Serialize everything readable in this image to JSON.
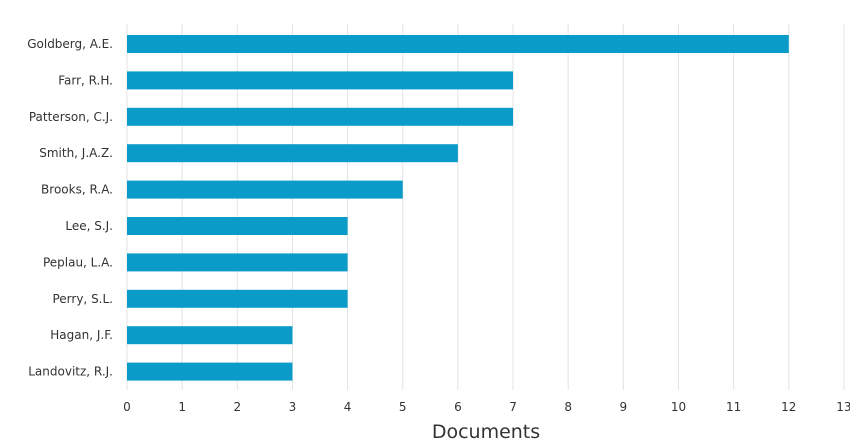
{
  "chart_data": {
    "type": "bar",
    "orientation": "horizontal",
    "categories": [
      "Goldberg, A.E.",
      "Farr, R.H.",
      "Patterson, C.J.",
      "Smith, J.A.Z.",
      "Brooks, R.A.",
      "Lee, S.J.",
      "Peplau, L.A.",
      "Perry, S.L.",
      "Hagan, J.F.",
      "Landovitz, R.J."
    ],
    "values": [
      12,
      7,
      7,
      6,
      5,
      4,
      4,
      4,
      3,
      3
    ],
    "title": "",
    "xlabel": "Documents",
    "ylabel": "",
    "xlim": [
      0,
      13
    ],
    "xticks": [
      "0",
      "1",
      "2",
      "3",
      "4",
      "5",
      "6",
      "7",
      "8",
      "9",
      "10",
      "11",
      "12",
      "13"
    ],
    "grid": "vertical",
    "legend": "none",
    "bar_color": "#0a9bc9"
  }
}
